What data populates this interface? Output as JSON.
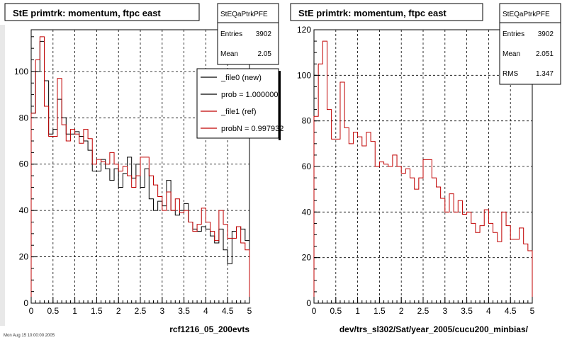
{
  "colors": {
    "background": "#ffffff",
    "frame": "#000000",
    "grid": "#000000",
    "new_series": "#000000",
    "ref_series": "#c00000",
    "left_strip": "#e8e8e8"
  },
  "panels": [
    {
      "title": "StE primtrk: momentum, ftpc east",
      "xlabel": "rcf1216_05_200evts",
      "stats": {
        "name": "StEQaPtrkPFE",
        "rows": [
          {
            "label": "Entries",
            "value": "3902"
          },
          {
            "label": "Mean",
            "value": "2.05"
          }
        ]
      },
      "legend": [
        {
          "label": "_file0 (new)",
          "color": "#000000"
        },
        {
          "label": "prob = 1.000000",
          "color": "#000000"
        },
        {
          "label": "_file1 (ref)",
          "color": "#c00000"
        },
        {
          "label": "probN = 0.997932",
          "color": "#c00000"
        }
      ],
      "footer_text": "Mon Aug 15 10:00:00 2005"
    },
    {
      "title": "StE primtrk: momentum, ftpc east",
      "xlabel": "dev/trs_sl302/Sat/year_2005/cucu200_minbias/",
      "stats": {
        "name": "StEQaPtrkPFE",
        "rows": [
          {
            "label": "Entries",
            "value": "3902"
          },
          {
            "label": "Mean",
            "value": "2.051"
          },
          {
            "label": "RMS",
            "value": "1.347"
          }
        ]
      }
    }
  ],
  "chart_data": [
    {
      "type": "histogram",
      "title": "StE primtrk: momentum, ftpc east",
      "xlabel": "rcf1216_05_200evts",
      "ylabel": "",
      "xlim": [
        0,
        5
      ],
      "ylim": [
        0,
        118
      ],
      "xticks": [
        "0",
        "0.5",
        "1",
        "1.5",
        "2",
        "2.5",
        "3",
        "3.5",
        "4",
        "4.5",
        "5"
      ],
      "yticks": [
        "0",
        "20",
        "40",
        "60",
        "80",
        "100"
      ],
      "grid": true,
      "legend_position": "top-right",
      "bin_width": 0.1,
      "series": [
        {
          "name": "_file0 (new)",
          "color": "#000000",
          "values": [
            82,
            100,
            113,
            96,
            73,
            75,
            88,
            80,
            73,
            73,
            74,
            72,
            70,
            66,
            57,
            57,
            62,
            58,
            53,
            58,
            50,
            56,
            63,
            54,
            60,
            50,
            58,
            45,
            40,
            44,
            42,
            53,
            40,
            38,
            40,
            43,
            35,
            32,
            31,
            33,
            32,
            29,
            26,
            32,
            23,
            17,
            31,
            33,
            32,
            27
          ]
        },
        {
          "name": "_file1 (ref)",
          "color": "#c00000",
          "values": [
            82,
            105,
            115,
            85,
            72,
            72,
            97,
            77,
            70,
            75,
            73,
            69,
            75,
            71,
            60,
            62,
            61,
            60,
            65,
            60,
            57,
            59,
            55,
            50,
            55,
            63,
            63,
            55,
            51,
            46,
            40,
            48,
            40,
            45,
            39,
            40,
            35,
            31,
            34,
            41,
            35,
            31,
            27,
            40,
            34,
            28,
            28,
            33,
            26,
            23
          ]
        }
      ]
    },
    {
      "type": "histogram",
      "title": "StE primtrk: momentum, ftpc east",
      "xlabel": "dev/trs_sl302/Sat/year_2005/cucu200_minbias/",
      "ylabel": "",
      "xlim": [
        0,
        5
      ],
      "ylim": [
        0,
        120
      ],
      "xticks": [
        "0",
        "0.5",
        "1",
        "1.5",
        "2",
        "2.5",
        "3",
        "3.5",
        "4",
        "4.5",
        "5"
      ],
      "yticks": [
        "0",
        "20",
        "40",
        "60",
        "80",
        "100",
        "120"
      ],
      "grid": true,
      "bin_width": 0.1,
      "series": [
        {
          "name": "",
          "color": "#c00000",
          "values": [
            82,
            105,
            115,
            85,
            72,
            72,
            97,
            77,
            70,
            75,
            73,
            69,
            75,
            71,
            60,
            62,
            61,
            60,
            65,
            60,
            57,
            59,
            55,
            50,
            55,
            63,
            63,
            55,
            51,
            46,
            40,
            48,
            40,
            45,
            39,
            40,
            35,
            31,
            34,
            41,
            35,
            31,
            27,
            40,
            34,
            28,
            28,
            33,
            26,
            23
          ]
        }
      ]
    }
  ]
}
